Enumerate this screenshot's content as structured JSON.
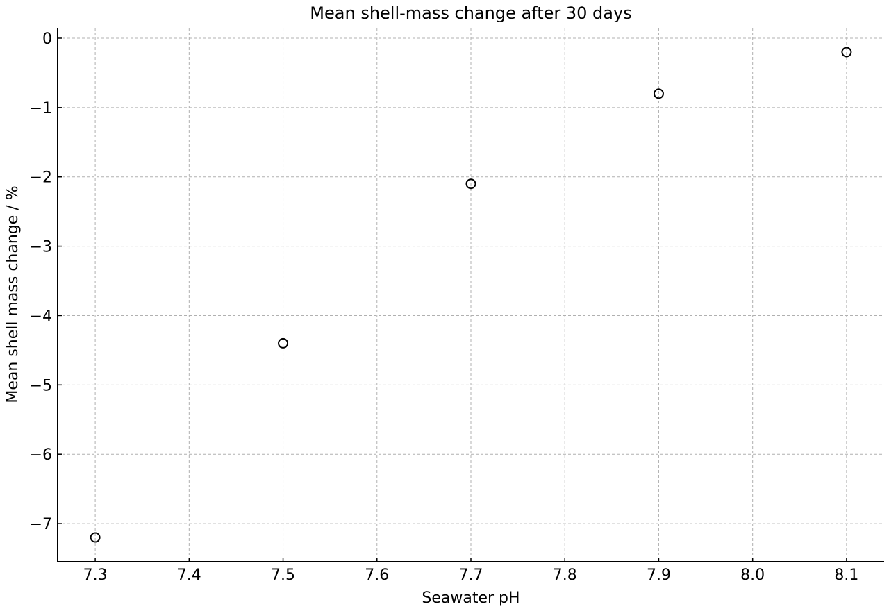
{
  "chart_data": {
    "type": "scatter",
    "title": "Mean shell-mass change after 30 days",
    "xlabel": "Seawater pH",
    "ylabel": "Mean shell mass change / %",
    "xlim": [
      7.26,
      8.14
    ],
    "ylim": [
      -7.55,
      0.15
    ],
    "x_ticks": [
      7.3,
      7.4,
      7.5,
      7.6,
      7.7,
      7.8,
      7.9,
      8.0,
      8.1
    ],
    "x_tick_labels": [
      "7.3",
      "7.4",
      "7.5",
      "7.6",
      "7.7",
      "7.8",
      "7.9",
      "8.0",
      "8.1"
    ],
    "y_ticks": [
      0,
      -1,
      -2,
      -3,
      -4,
      -5,
      -6,
      -7
    ],
    "y_tick_labels": [
      "0",
      "−1",
      "−2",
      "−3",
      "−4",
      "−5",
      "−6",
      "−7"
    ],
    "grid": true,
    "marker": "open-circle",
    "marker_color": "#000000",
    "grid_color": "#b0b0b0",
    "points": [
      {
        "x": 7.3,
        "y": -7.2
      },
      {
        "x": 7.5,
        "y": -4.4
      },
      {
        "x": 7.7,
        "y": -2.1
      },
      {
        "x": 7.9,
        "y": -0.8
      },
      {
        "x": 8.1,
        "y": -0.2
      }
    ]
  }
}
